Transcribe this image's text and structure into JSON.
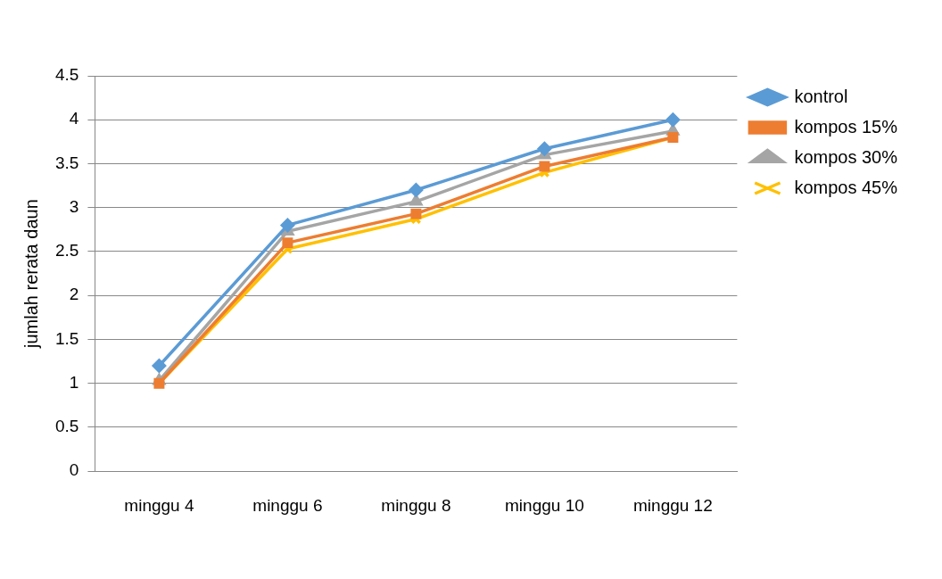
{
  "chart_data": {
    "type": "line",
    "ylabel": "jumlah rerata daun",
    "categories": [
      "minggu 4",
      "minggu 6",
      "minggu 8",
      "minggu 10",
      "minggu 12"
    ],
    "series": [
      {
        "name": "kontrol",
        "color": "#5b9bd5",
        "marker": "diamond",
        "values": [
          1.2,
          2.8,
          3.2,
          3.67,
          4.0
        ]
      },
      {
        "name": "kompos 15%",
        "color": "#ed7d31",
        "marker": "square",
        "values": [
          1.0,
          2.6,
          2.93,
          3.47,
          3.8
        ]
      },
      {
        "name": "kompos 30%",
        "color": "#a5a5a5",
        "marker": "triangle",
        "values": [
          1.03,
          2.73,
          3.07,
          3.6,
          3.87
        ]
      },
      {
        "name": "kompos 45%",
        "color": "#ffc000",
        "marker": "cross",
        "values": [
          1.0,
          2.53,
          2.87,
          3.4,
          3.8
        ]
      }
    ],
    "ylim": [
      0,
      4.5
    ],
    "yticks": [
      0,
      0.5,
      1,
      1.5,
      2,
      2.5,
      3,
      3.5,
      4,
      4.5
    ],
    "grid": "y",
    "legend": "right",
    "line_style": "solid"
  }
}
